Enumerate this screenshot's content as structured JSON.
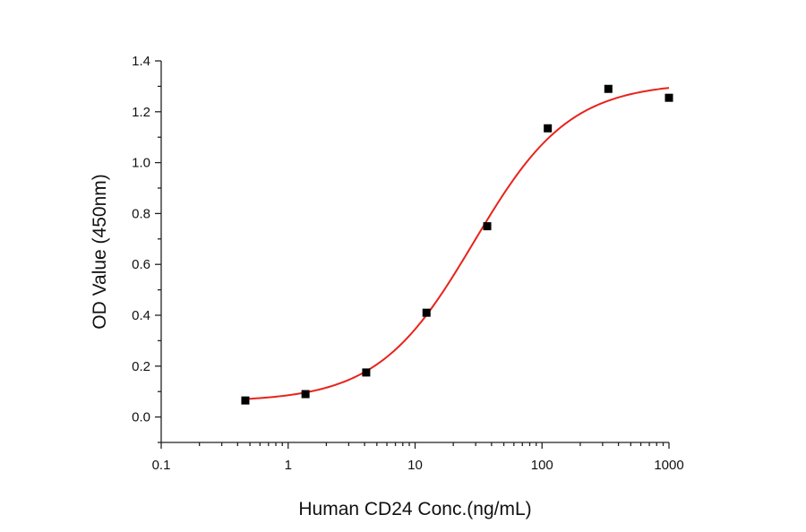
{
  "chart_data": {
    "type": "scatter",
    "title": "",
    "xlabel": "Human CD24 Conc.(ng/mL)",
    "ylabel": "OD Value (450nm)",
    "x_scale": "log",
    "xlim": [
      0.1,
      1000
    ],
    "ylim": [
      -0.1,
      1.4
    ],
    "x_ticks": [
      0.1,
      1,
      10,
      100,
      1000
    ],
    "x_tick_labels": [
      "0.1",
      "1",
      "10",
      "100",
      "1000"
    ],
    "y_ticks": [
      0.0,
      0.2,
      0.4,
      0.6,
      0.8,
      1.0,
      1.2,
      1.4
    ],
    "y_tick_labels": [
      "0.0",
      "0.2",
      "0.4",
      "0.6",
      "0.8",
      "1.0",
      "1.2",
      "1.4"
    ],
    "grid": false,
    "legend": "none",
    "series": [
      {
        "kind": "points",
        "marker": "square",
        "color": "#000000",
        "x": [
          0.46,
          1.37,
          4.12,
          12.3,
          37.0,
          111,
          333,
          1000
        ],
        "y": [
          0.065,
          0.09,
          0.175,
          0.41,
          0.75,
          1.135,
          1.29,
          1.255
        ]
      },
      {
        "kind": "fit-curve",
        "color": "#e8231b",
        "model": "4PL",
        "bottom": 0.06,
        "top": 1.315,
        "ec50": 29,
        "hill": 1.15,
        "x_range": [
          0.46,
          1000
        ]
      }
    ]
  }
}
